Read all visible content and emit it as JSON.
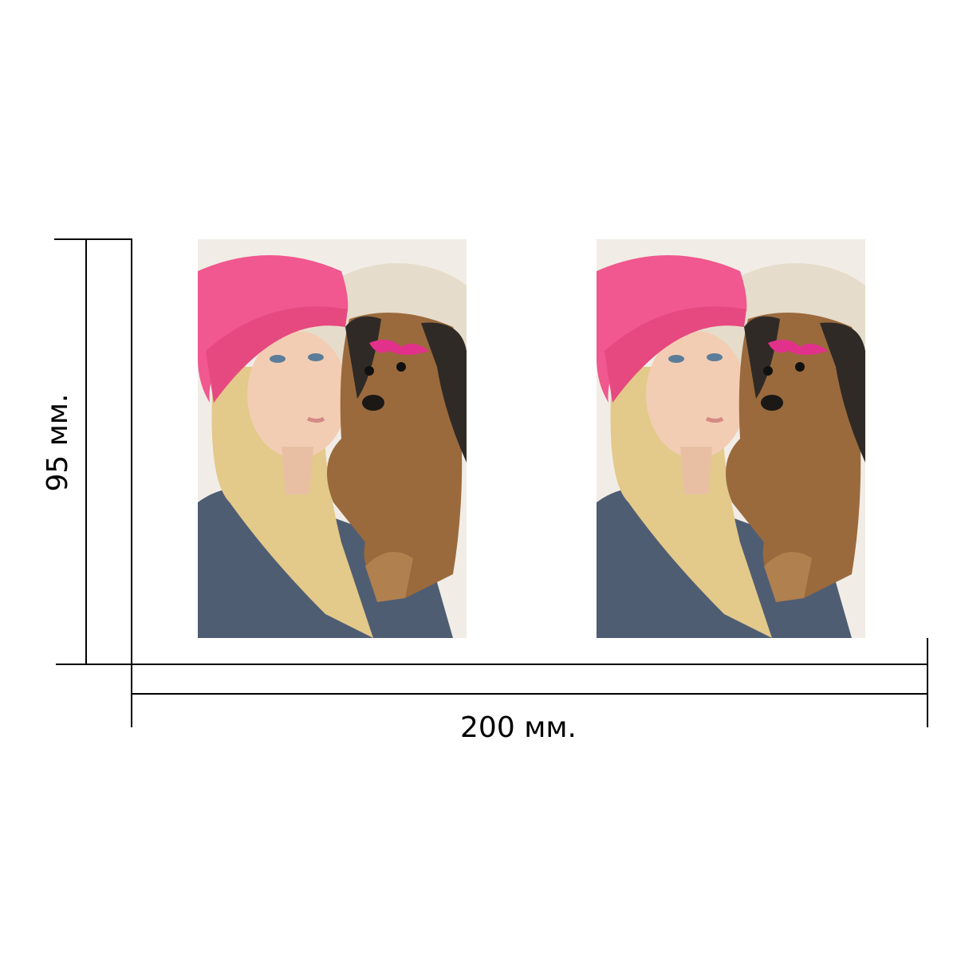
{
  "dimensions": {
    "height": "95 мм.",
    "width": "200 мм."
  }
}
